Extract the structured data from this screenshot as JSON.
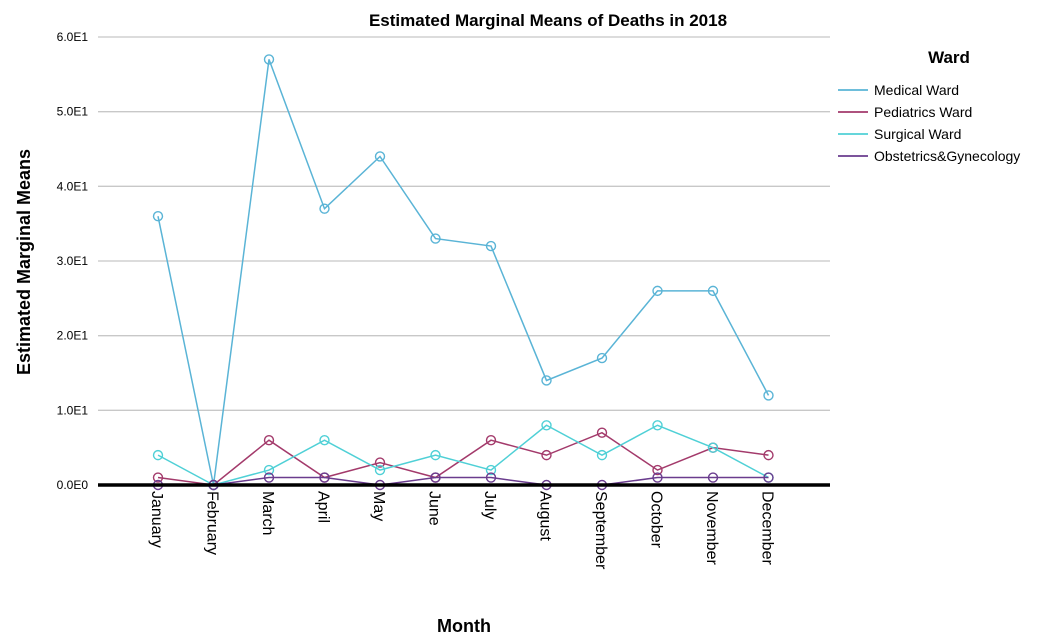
{
  "chart_data": {
    "type": "line",
    "title": "Estimated Marginal Means of Deaths in 2018",
    "xlabel": "Month",
    "ylabel": "Estimated Marginal Means",
    "categories": [
      "January",
      "February",
      "March",
      "April",
      "May",
      "June",
      "July",
      "August",
      "September",
      "October",
      "November",
      "December"
    ],
    "ylim": [
      0,
      60
    ],
    "yticks": [
      0,
      10,
      20,
      30,
      40,
      50,
      60
    ],
    "ytick_labels": [
      "0.0E0",
      "1.0E1",
      "2.0E1",
      "3.0E1",
      "4.0E1",
      "5.0E1",
      "6.0E1"
    ],
    "grid": true,
    "legend_title": "Ward",
    "legend_position": "top-right",
    "series": [
      {
        "name": "Medical Ward",
        "color": "#5ab4d6",
        "values": [
          36,
          0,
          57,
          37,
          44,
          33,
          32,
          14,
          17,
          26,
          26,
          12
        ]
      },
      {
        "name": "Pediatrics Ward",
        "color": "#a33a6b",
        "values": [
          1,
          0,
          6,
          1,
          3,
          1,
          6,
          4,
          7,
          2,
          5,
          4
        ]
      },
      {
        "name": "Surgical Ward",
        "color": "#4fd0d6",
        "values": [
          4,
          0,
          2,
          6,
          2,
          4,
          2,
          8,
          4,
          8,
          5,
          1
        ]
      },
      {
        "name": "Obstetrics&Gynecology",
        "color": "#6a3c8e",
        "values": [
          0,
          0,
          1,
          1,
          0,
          1,
          1,
          0,
          0,
          1,
          1,
          1
        ]
      }
    ]
  }
}
